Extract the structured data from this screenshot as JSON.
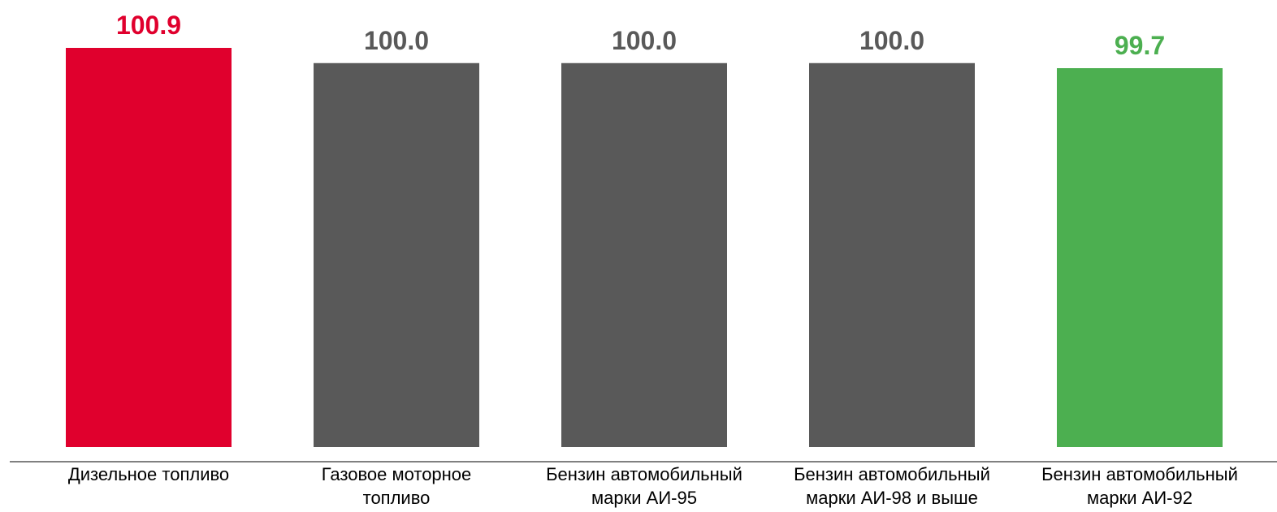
{
  "chart_data": {
    "type": "bar",
    "categories": [
      [
        "Дизельное топливо"
      ],
      [
        "Газовое моторное",
        "топливо"
      ],
      [
        "Бензин автомобильный",
        "марки АИ-95"
      ],
      [
        "Бензин автомобильный",
        "марки АИ-98 и выше"
      ],
      [
        "Бензин автомобильный",
        "марки АИ-92"
      ]
    ],
    "values": [
      100.9,
      100.0,
      100.0,
      100.0,
      99.7
    ],
    "value_labels": [
      "100.9",
      "100.0",
      "100.0",
      "100.0",
      "99.7"
    ],
    "title": "",
    "xlabel": "",
    "ylabel": "",
    "ylim": [
      77.3,
      100.9
    ],
    "grid": false,
    "legend": "none",
    "colors": {
      "bars": [
        "#e0002d",
        "#595959",
        "#595959",
        "#595959",
        "#4caf50"
      ],
      "labels": [
        "#e0002d",
        "#595959",
        "#595959",
        "#595959",
        "#4caf50"
      ],
      "axis": "#808080"
    }
  }
}
